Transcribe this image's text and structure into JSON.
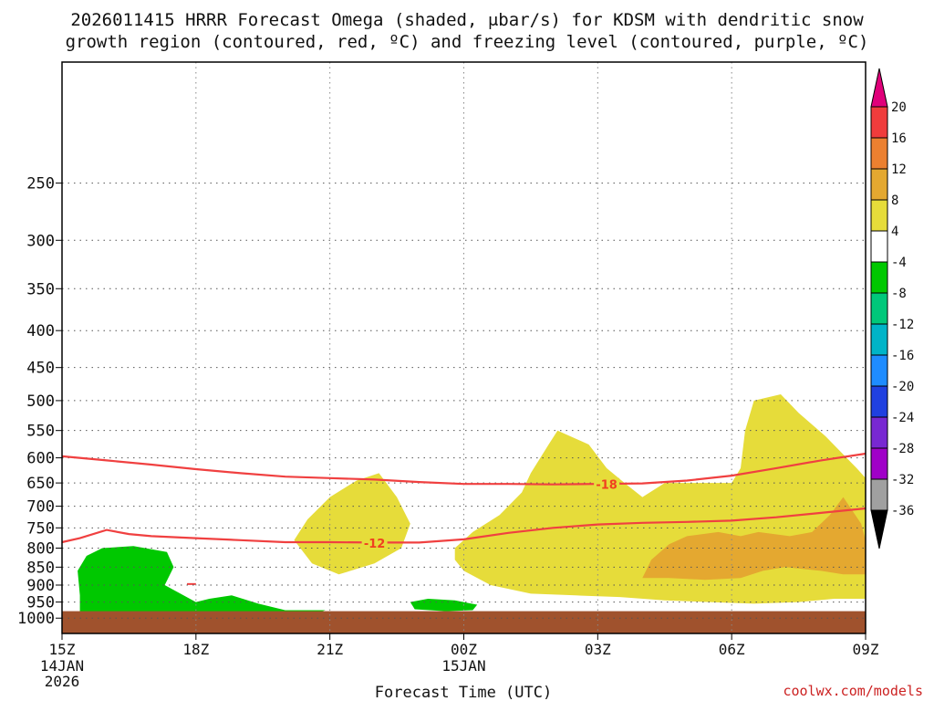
{
  "chart_data": {
    "type": "heatmap",
    "title_lines": [
      "2026011415 HRRR Forecast Omega (shaded, μbar/s) for KDSM with dendritic snow",
      "growth region (contoured, red, ºC) and freezing level (contoured, purple, ºC)"
    ],
    "xlabel": "Forecast Time (UTC)",
    "x_ticks": [
      {
        "hour": 0,
        "label": "15Z",
        "sub": [
          "14JAN",
          "2026"
        ]
      },
      {
        "hour": 3,
        "label": "18Z",
        "sub": []
      },
      {
        "hour": 6,
        "label": "21Z",
        "sub": []
      },
      {
        "hour": 9,
        "label": "00Z",
        "sub": [
          "15JAN"
        ]
      },
      {
        "hour": 12,
        "label": "03Z",
        "sub": []
      },
      {
        "hour": 15,
        "label": "06Z",
        "sub": []
      },
      {
        "hour": 18,
        "label": "09Z",
        "sub": []
      }
    ],
    "xlim_hours": [
      0,
      18
    ],
    "ylabel": "",
    "y_ticks": [
      250,
      300,
      350,
      400,
      450,
      500,
      550,
      600,
      650,
      700,
      750,
      800,
      850,
      900,
      950,
      1000
    ],
    "ylim_mb": [
      170,
      1050
    ],
    "y_scale": "log-pressure",
    "grid": true,
    "colorbar": {
      "labels": [
        "20",
        "16",
        "12",
        "8",
        "4",
        "-4",
        "-8",
        "-12",
        "-16",
        "-20",
        "-24",
        "-28",
        "-32",
        "-36"
      ],
      "colors": [
        "#f03c3c",
        "#ec8030",
        "#e4a830",
        "#e6dc3a",
        "#ffffff",
        "#00c800",
        "#00c87a",
        "#00b4c8",
        "#1e8cff",
        "#2040e0",
        "#7828d2",
        "#a000c8",
        "#a0a0a0"
      ],
      "top_arrow_color": "#e0007a",
      "bottom_arrow_color": "#000000"
    },
    "omega_regions": [
      {
        "level": "4 to 8",
        "color": "#e6dc3a",
        "points": [
          [
            5.2,
            780
          ],
          [
            5.5,
            730
          ],
          [
            6.0,
            680
          ],
          [
            6.6,
            645
          ],
          [
            7.1,
            630
          ],
          [
            7.5,
            680
          ],
          [
            7.8,
            740
          ],
          [
            7.6,
            800
          ],
          [
            7.0,
            840
          ],
          [
            6.2,
            870
          ],
          [
            5.6,
            840
          ]
        ]
      },
      {
        "level": "4 to 8",
        "color": "#e6dc3a",
        "points": [
          [
            8.8,
            800
          ],
          [
            9.2,
            760
          ],
          [
            9.8,
            720
          ],
          [
            10.3,
            670
          ],
          [
            10.5,
            630
          ],
          [
            10.9,
            575
          ],
          [
            11.1,
            550
          ],
          [
            11.8,
            575
          ],
          [
            12.2,
            620
          ],
          [
            12.6,
            650
          ],
          [
            13.0,
            680
          ],
          [
            13.5,
            650
          ],
          [
            14.5,
            650
          ],
          [
            15.0,
            650
          ],
          [
            15.2,
            620
          ],
          [
            15.3,
            550
          ],
          [
            15.5,
            500
          ],
          [
            16.1,
            490
          ],
          [
            16.5,
            520
          ],
          [
            17.1,
            560
          ],
          [
            17.8,
            620
          ],
          [
            18.0,
            640
          ],
          [
            18.0,
            940
          ],
          [
            17.3,
            940
          ],
          [
            16.5,
            950
          ],
          [
            15.5,
            955
          ],
          [
            14.5,
            950
          ],
          [
            13.5,
            945
          ],
          [
            12.5,
            935
          ],
          [
            11.5,
            930
          ],
          [
            10.5,
            925
          ],
          [
            9.6,
            900
          ],
          [
            9.0,
            860
          ],
          [
            8.8,
            830
          ]
        ]
      },
      {
        "level": "8 to 12",
        "color": "#e4a830",
        "points": [
          [
            13.0,
            880
          ],
          [
            13.2,
            830
          ],
          [
            13.6,
            790
          ],
          [
            14.0,
            770
          ],
          [
            14.7,
            760
          ],
          [
            15.2,
            770
          ],
          [
            15.6,
            760
          ],
          [
            16.3,
            770
          ],
          [
            16.8,
            760
          ],
          [
            17.2,
            720
          ],
          [
            17.5,
            680
          ],
          [
            17.9,
            740
          ],
          [
            18.0,
            780
          ],
          [
            18.0,
            870
          ],
          [
            17.5,
            870
          ],
          [
            17.0,
            860
          ],
          [
            16.2,
            850
          ],
          [
            15.7,
            860
          ],
          [
            15.2,
            880
          ],
          [
            14.4,
            885
          ],
          [
            13.6,
            880
          ]
        ]
      },
      {
        "level": "-4 to -8",
        "color": "#00c800",
        "points": [
          [
            0.4,
            980
          ],
          [
            0.4,
            930
          ],
          [
            0.35,
            860
          ],
          [
            0.55,
            820
          ],
          [
            0.9,
            800
          ],
          [
            1.6,
            795
          ],
          [
            2.35,
            810
          ],
          [
            2.5,
            850
          ],
          [
            2.3,
            900
          ],
          [
            3.0,
            950
          ],
          [
            3.3,
            940
          ],
          [
            3.8,
            930
          ],
          [
            4.4,
            955
          ],
          [
            5.0,
            975
          ],
          [
            5.9,
            975
          ],
          [
            5.6,
            990
          ],
          [
            2.8,
            990
          ],
          [
            1.2,
            990
          ],
          [
            0.6,
            990
          ]
        ]
      },
      {
        "level": "-4 to -8",
        "color": "#00c800",
        "points": [
          [
            7.8,
            950
          ],
          [
            8.2,
            940
          ],
          [
            8.8,
            945
          ],
          [
            9.3,
            958
          ],
          [
            9.2,
            975
          ],
          [
            8.6,
            978
          ],
          [
            7.9,
            972
          ]
        ]
      }
    ],
    "dendritic_contours": [
      {
        "label": "-18",
        "color": "#f04040",
        "x": [
          0,
          1,
          2,
          3,
          4,
          5,
          6,
          7,
          8,
          9,
          10,
          11,
          12,
          13,
          14,
          15,
          16,
          17,
          18
        ],
        "y": [
          597,
          605,
          613,
          622,
          630,
          637,
          640,
          643,
          648,
          652,
          652,
          653,
          652,
          651,
          645,
          635,
          620,
          605,
          592
        ]
      },
      {
        "label": "-12",
        "color": "#f04040",
        "x": [
          0,
          0.4,
          1.0,
          1.5,
          2,
          3,
          4,
          5,
          6,
          7,
          8,
          9,
          10,
          11,
          12,
          13,
          14,
          15,
          16,
          17,
          18
        ],
        "y": [
          785,
          775,
          755,
          765,
          770,
          775,
          780,
          785,
          785,
          786,
          786,
          778,
          762,
          750,
          742,
          738,
          736,
          733,
          725,
          715,
          705
        ]
      }
    ],
    "contour_label_positions": [
      {
        "label": "-18",
        "x": 12.2,
        "y": 653
      },
      {
        "label": "-12",
        "x": 7.0,
        "y": 787
      }
    ],
    "surface_fill_color": "#a0522d"
  },
  "credit": "coolwx.com/models"
}
